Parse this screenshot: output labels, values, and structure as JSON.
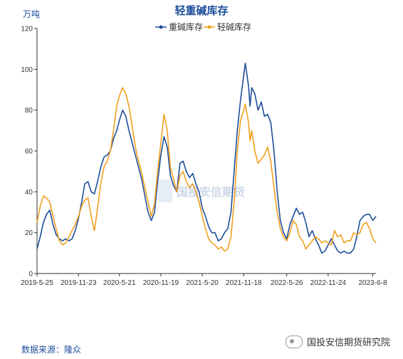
{
  "header": {
    "title": "轻重碱库存",
    "unit": "万吨"
  },
  "footer": {
    "source": "数据来源：隆众",
    "brand": "国投安信期货研究院"
  },
  "watermark": {
    "text": "国投安信期货"
  },
  "colors": {
    "heavy": "#1f4e9b",
    "light": "#f0a020",
    "axis": "#333333",
    "title": "#1f4e9b"
  },
  "chart_data": {
    "type": "line",
    "title": "轻重碱库存",
    "ylabel": "万吨",
    "ylim": [
      0,
      120
    ],
    "yticks": [
      0,
      20,
      40,
      60,
      80,
      100,
      120
    ],
    "xticks": [
      "2019-5-25",
      "2019-11-23",
      "2020-5-21",
      "2020-11-19",
      "2021-5-20",
      "2021-11-18",
      "2022-5-26",
      "2022-11-24",
      "2023-6-8"
    ],
    "xrange": [
      "2019-05-25",
      "2023-06-22"
    ],
    "grid": false,
    "legend_position": "top-center",
    "series": [
      {
        "name": "重碱库存",
        "color": "#1f4e9b",
        "points": [
          [
            "2019-05-25",
            12
          ],
          [
            "2019-06-08",
            18
          ],
          [
            "2019-06-22",
            25
          ],
          [
            "2019-07-06",
            29
          ],
          [
            "2019-07-20",
            31
          ],
          [
            "2019-08-03",
            24
          ],
          [
            "2019-08-17",
            19
          ],
          [
            "2019-08-31",
            17
          ],
          [
            "2019-09-14",
            16
          ],
          [
            "2019-09-28",
            17
          ],
          [
            "2019-10-12",
            16
          ],
          [
            "2019-10-26",
            17
          ],
          [
            "2019-11-09",
            21
          ],
          [
            "2019-11-23",
            27
          ],
          [
            "2019-12-07",
            35
          ],
          [
            "2019-12-21",
            44
          ],
          [
            "2020-01-04",
            45
          ],
          [
            "2020-01-18",
            40
          ],
          [
            "2020-02-01",
            39
          ],
          [
            "2020-02-15",
            45
          ],
          [
            "2020-02-29",
            52
          ],
          [
            "2020-03-14",
            57
          ],
          [
            "2020-03-28",
            58
          ],
          [
            "2020-04-11",
            60
          ],
          [
            "2020-04-25",
            66
          ],
          [
            "2020-05-09",
            70
          ],
          [
            "2020-05-21",
            75
          ],
          [
            "2020-06-04",
            80
          ],
          [
            "2020-06-18",
            77
          ],
          [
            "2020-07-02",
            70
          ],
          [
            "2020-07-16",
            64
          ],
          [
            "2020-07-30",
            58
          ],
          [
            "2020-08-13",
            52
          ],
          [
            "2020-08-27",
            46
          ],
          [
            "2020-09-10",
            38
          ],
          [
            "2020-09-24",
            30
          ],
          [
            "2020-10-08",
            26
          ],
          [
            "2020-10-22",
            30
          ],
          [
            "2020-11-05",
            45
          ],
          [
            "2020-11-19",
            58
          ],
          [
            "2020-12-03",
            67
          ],
          [
            "2020-12-17",
            62
          ],
          [
            "2020-12-31",
            48
          ],
          [
            "2021-01-14",
            43
          ],
          [
            "2021-01-28",
            40
          ],
          [
            "2021-02-11",
            54
          ],
          [
            "2021-02-25",
            55
          ],
          [
            "2021-03-11",
            50
          ],
          [
            "2021-03-25",
            47
          ],
          [
            "2021-04-08",
            49
          ],
          [
            "2021-04-22",
            44
          ],
          [
            "2021-05-06",
            40
          ],
          [
            "2021-05-20",
            32
          ],
          [
            "2021-06-03",
            28
          ],
          [
            "2021-06-17",
            23
          ],
          [
            "2021-07-01",
            20
          ],
          [
            "2021-07-15",
            20
          ],
          [
            "2021-07-29",
            16
          ],
          [
            "2021-08-12",
            17
          ],
          [
            "2021-08-26",
            20
          ],
          [
            "2021-09-09",
            22
          ],
          [
            "2021-09-23",
            30
          ],
          [
            "2021-10-07",
            50
          ],
          [
            "2021-10-21",
            70
          ],
          [
            "2021-11-04",
            85
          ],
          [
            "2021-11-18",
            97
          ],
          [
            "2021-11-25",
            103
          ],
          [
            "2021-12-09",
            92
          ],
          [
            "2021-12-16",
            82
          ],
          [
            "2021-12-23",
            91
          ],
          [
            "2022-01-06",
            88
          ],
          [
            "2022-01-20",
            80
          ],
          [
            "2022-02-03",
            84
          ],
          [
            "2022-02-17",
            77
          ],
          [
            "2022-03-03",
            78
          ],
          [
            "2022-03-17",
            74
          ],
          [
            "2022-03-31",
            60
          ],
          [
            "2022-04-14",
            40
          ],
          [
            "2022-04-28",
            26
          ],
          [
            "2022-05-12",
            20
          ],
          [
            "2022-05-26",
            17
          ],
          [
            "2022-06-09",
            24
          ],
          [
            "2022-06-23",
            28
          ],
          [
            "2022-07-07",
            32
          ],
          [
            "2022-07-21",
            29
          ],
          [
            "2022-08-04",
            30
          ],
          [
            "2022-08-18",
            25
          ],
          [
            "2022-09-01",
            18
          ],
          [
            "2022-09-15",
            21
          ],
          [
            "2022-09-29",
            17
          ],
          [
            "2022-10-13",
            14
          ],
          [
            "2022-10-27",
            10
          ],
          [
            "2022-11-10",
            11
          ],
          [
            "2022-11-24",
            14
          ],
          [
            "2022-12-08",
            17
          ],
          [
            "2022-12-22",
            14
          ],
          [
            "2023-01-05",
            11
          ],
          [
            "2023-01-19",
            10
          ],
          [
            "2023-02-02",
            11
          ],
          [
            "2023-02-16",
            10
          ],
          [
            "2023-03-02",
            10
          ],
          [
            "2023-03-16",
            12
          ],
          [
            "2023-03-30",
            18
          ],
          [
            "2023-04-13",
            26
          ],
          [
            "2023-04-27",
            28
          ],
          [
            "2023-05-11",
            29
          ],
          [
            "2023-05-25",
            29
          ],
          [
            "2023-06-08",
            26
          ],
          [
            "2023-06-22",
            28
          ]
        ]
      },
      {
        "name": "轻碱库存",
        "color": "#f0a020",
        "points": [
          [
            "2019-05-25",
            25
          ],
          [
            "2019-06-08",
            33
          ],
          [
            "2019-06-22",
            38
          ],
          [
            "2019-07-06",
            37
          ],
          [
            "2019-07-20",
            35
          ],
          [
            "2019-08-03",
            28
          ],
          [
            "2019-08-17",
            22
          ],
          [
            "2019-08-31",
            16
          ],
          [
            "2019-09-14",
            14
          ],
          [
            "2019-09-28",
            15
          ],
          [
            "2019-10-12",
            18
          ],
          [
            "2019-10-26",
            21
          ],
          [
            "2019-11-09",
            24
          ],
          [
            "2019-11-23",
            28
          ],
          [
            "2019-12-07",
            33
          ],
          [
            "2019-12-21",
            36
          ],
          [
            "2020-01-04",
            37
          ],
          [
            "2020-01-18",
            28
          ],
          [
            "2020-02-01",
            21
          ],
          [
            "2020-02-15",
            32
          ],
          [
            "2020-02-29",
            44
          ],
          [
            "2020-03-14",
            52
          ],
          [
            "2020-03-28",
            55
          ],
          [
            "2020-04-11",
            60
          ],
          [
            "2020-04-25",
            70
          ],
          [
            "2020-05-09",
            82
          ],
          [
            "2020-05-21",
            87
          ],
          [
            "2020-06-04",
            91
          ],
          [
            "2020-06-18",
            88
          ],
          [
            "2020-07-02",
            82
          ],
          [
            "2020-07-16",
            72
          ],
          [
            "2020-07-30",
            62
          ],
          [
            "2020-08-13",
            55
          ],
          [
            "2020-08-27",
            49
          ],
          [
            "2020-09-10",
            42
          ],
          [
            "2020-09-24",
            35
          ],
          [
            "2020-10-08",
            28
          ],
          [
            "2020-10-22",
            34
          ],
          [
            "2020-11-05",
            50
          ],
          [
            "2020-11-19",
            64
          ],
          [
            "2020-12-03",
            78
          ],
          [
            "2020-12-17",
            70
          ],
          [
            "2020-12-31",
            52
          ],
          [
            "2021-01-14",
            46
          ],
          [
            "2021-01-28",
            40
          ],
          [
            "2021-02-11",
            48
          ],
          [
            "2021-02-25",
            50
          ],
          [
            "2021-03-11",
            45
          ],
          [
            "2021-03-25",
            42
          ],
          [
            "2021-04-08",
            44
          ],
          [
            "2021-04-22",
            40
          ],
          [
            "2021-05-06",
            35
          ],
          [
            "2021-05-20",
            28
          ],
          [
            "2021-06-03",
            22
          ],
          [
            "2021-06-17",
            17
          ],
          [
            "2021-07-01",
            15
          ],
          [
            "2021-07-15",
            14
          ],
          [
            "2021-07-29",
            12
          ],
          [
            "2021-08-12",
            13
          ],
          [
            "2021-08-26",
            11
          ],
          [
            "2021-09-09",
            12
          ],
          [
            "2021-09-23",
            18
          ],
          [
            "2021-10-07",
            35
          ],
          [
            "2021-10-21",
            60
          ],
          [
            "2021-11-04",
            75
          ],
          [
            "2021-11-18",
            80
          ],
          [
            "2021-11-25",
            83
          ],
          [
            "2021-12-09",
            74
          ],
          [
            "2021-12-16",
            65
          ],
          [
            "2021-12-23",
            70
          ],
          [
            "2022-01-06",
            60
          ],
          [
            "2022-01-20",
            54
          ],
          [
            "2022-02-03",
            56
          ],
          [
            "2022-02-17",
            58
          ],
          [
            "2022-03-03",
            62
          ],
          [
            "2022-03-17",
            55
          ],
          [
            "2022-03-31",
            42
          ],
          [
            "2022-04-14",
            30
          ],
          [
            "2022-04-28",
            22
          ],
          [
            "2022-05-12",
            18
          ],
          [
            "2022-05-26",
            16
          ],
          [
            "2022-06-09",
            20
          ],
          [
            "2022-06-23",
            26
          ],
          [
            "2022-07-07",
            24
          ],
          [
            "2022-07-21",
            18
          ],
          [
            "2022-08-04",
            16
          ],
          [
            "2022-08-18",
            12
          ],
          [
            "2022-09-01",
            14
          ],
          [
            "2022-09-15",
            16
          ],
          [
            "2022-09-29",
            18
          ],
          [
            "2022-10-13",
            17
          ],
          [
            "2022-10-27",
            15
          ],
          [
            "2022-11-10",
            16
          ],
          [
            "2022-11-24",
            15
          ],
          [
            "2022-12-08",
            14
          ],
          [
            "2022-12-22",
            21
          ],
          [
            "2023-01-05",
            18
          ],
          [
            "2023-01-19",
            19
          ],
          [
            "2023-02-02",
            15
          ],
          [
            "2023-02-16",
            16
          ],
          [
            "2023-03-02",
            16
          ],
          [
            "2023-03-16",
            20
          ],
          [
            "2023-03-30",
            19
          ],
          [
            "2023-04-13",
            20
          ],
          [
            "2023-04-27",
            24
          ],
          [
            "2023-05-11",
            25
          ],
          [
            "2023-05-25",
            22
          ],
          [
            "2023-06-08",
            17
          ],
          [
            "2023-06-22",
            15
          ]
        ]
      }
    ]
  }
}
